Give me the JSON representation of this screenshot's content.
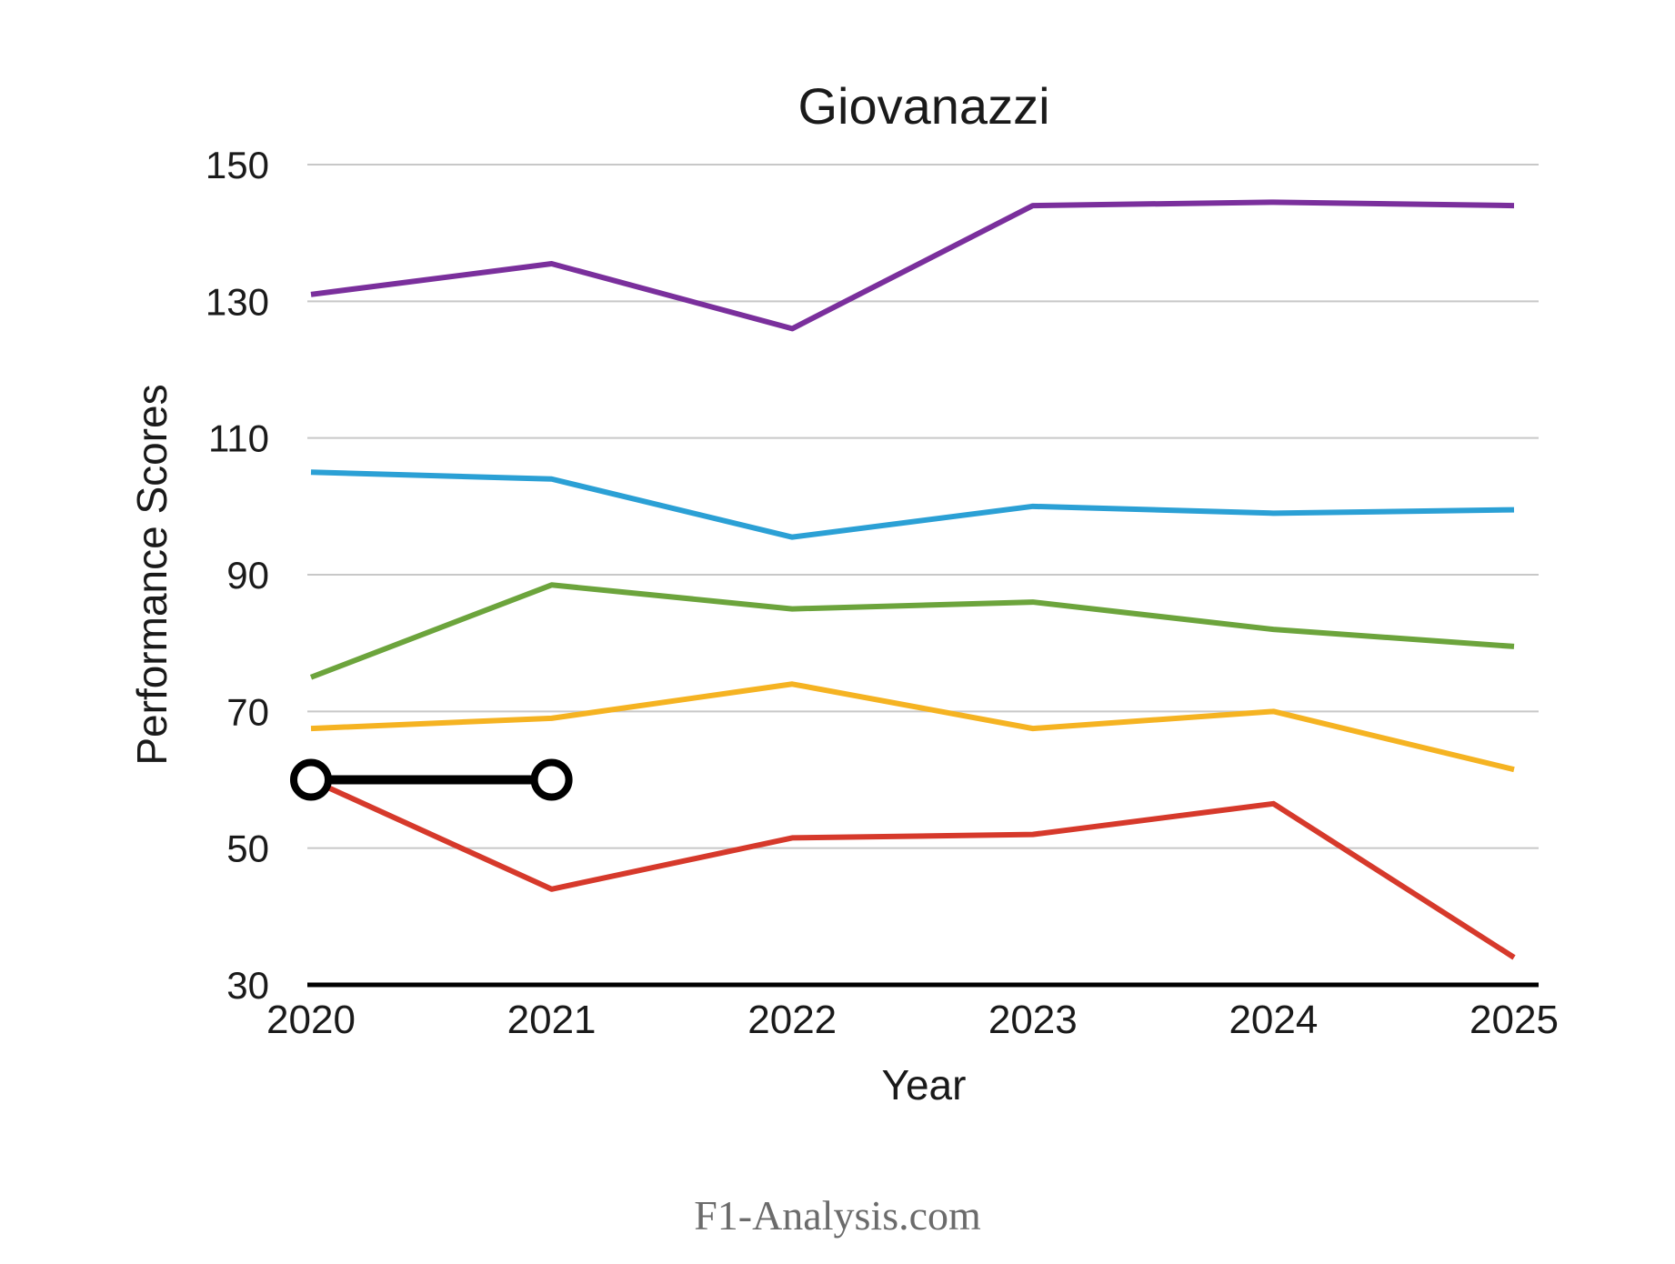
{
  "page": {
    "background": "#FFFFFF"
  },
  "chart_data": {
    "type": "line",
    "title": "Giovanazzi",
    "xlabel": "Year",
    "ylabel": "Performance Scores",
    "categories": [
      2020,
      2021,
      2022,
      2023,
      2024,
      2025
    ],
    "yticks": [
      150,
      130,
      110,
      90,
      70,
      50,
      30
    ],
    "ylim": [
      30,
      150
    ],
    "grid": true,
    "legend": "none",
    "series": [
      {
        "name": "purple-series",
        "color": "#7A2F9C",
        "values": [
          131,
          135.5,
          126,
          144,
          144.5,
          144
        ]
      },
      {
        "name": "blue-series",
        "color": "#2BA0D5",
        "values": [
          105,
          104,
          95.5,
          100,
          99,
          99.5
        ]
      },
      {
        "name": "green-series",
        "color": "#6CA43C",
        "values": [
          75,
          88.5,
          85,
          86,
          82,
          79.5
        ]
      },
      {
        "name": "yellow-series",
        "color": "#F5B322",
        "values": [
          67.5,
          69,
          74,
          67.5,
          70,
          61.5
        ]
      },
      {
        "name": "red-series",
        "color": "#D6392B",
        "values": [
          60,
          44,
          51.5,
          52,
          56.5,
          34
        ]
      }
    ],
    "annotation": {
      "name": "highlight-segment",
      "color": "#000000",
      "marker": "open-circle",
      "points": [
        {
          "x": 2020,
          "y": 60
        },
        {
          "x": 2021,
          "y": 60
        }
      ]
    },
    "axis_color": "#000000",
    "gridline_color": "#C8C8C8",
    "tick_label_color": "#1A1A1A"
  },
  "footer": {
    "text": "F1-Analysis.com",
    "color": "#6B6B6B"
  }
}
